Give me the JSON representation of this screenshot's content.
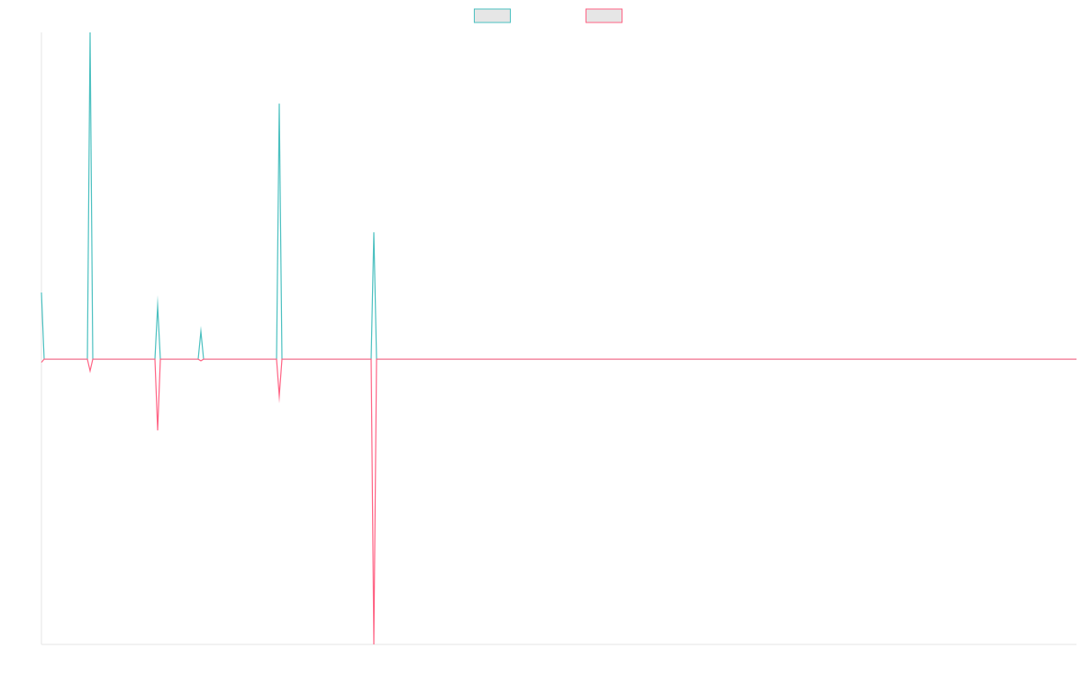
{
  "chart_data": {
    "type": "line",
    "x": [
      0,
      1,
      17,
      18,
      19,
      42,
      43,
      44,
      58,
      59,
      60,
      87,
      88,
      89,
      122,
      123,
      124,
      383
    ],
    "xlim": [
      0,
      383
    ],
    "ylim": [
      -87.3,
      100
    ],
    "grid": false,
    "legend": "top",
    "series": [
      {
        "color": "#4bc0c0",
        "values": [
          20.4,
          0,
          0,
          100,
          0,
          0,
          16.3,
          0,
          0,
          8.5,
          0,
          0,
          78.2,
          0,
          0,
          38.8,
          0,
          0
        ]
      },
      {
        "color": "#ff6384",
        "values": [
          -1,
          0,
          0,
          -3.6,
          0,
          0,
          -21.8,
          0,
          0,
          -0.5,
          0,
          0,
          -11.3,
          0,
          0,
          -87.3,
          0,
          0
        ]
      }
    ]
  }
}
